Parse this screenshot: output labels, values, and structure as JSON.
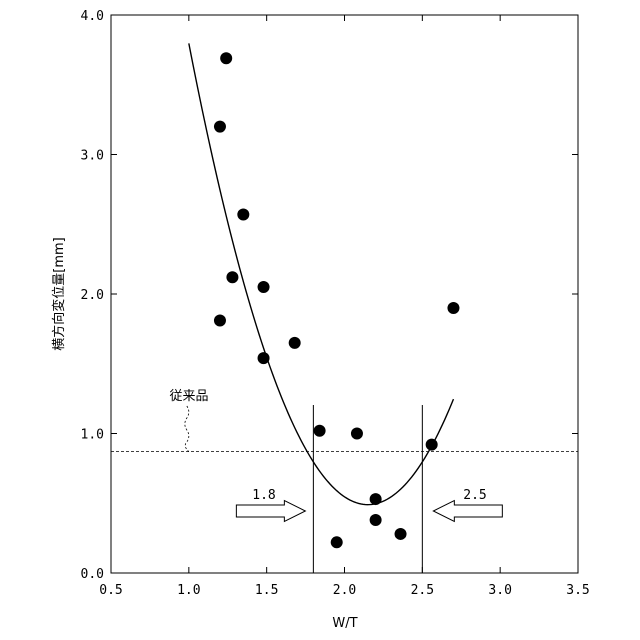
{
  "chart_data": {
    "type": "scatter",
    "xlabel": "W/T",
    "ylabel": "横方向変位量[mm]",
    "xlim": [
      0.5,
      3.5
    ],
    "ylim": [
      0.0,
      4.0
    ],
    "x_ticks": [
      "0.5",
      "1.0",
      "1.5",
      "2.0",
      "2.5",
      "3.0",
      "3.5"
    ],
    "y_ticks": [
      "0.0",
      "1.0",
      "2.0",
      "3.0",
      "4.0"
    ],
    "grid": false,
    "points": [
      {
        "x": 1.24,
        "y": 3.69
      },
      {
        "x": 1.2,
        "y": 3.2
      },
      {
        "x": 1.35,
        "y": 2.57
      },
      {
        "x": 1.28,
        "y": 2.12
      },
      {
        "x": 1.48,
        "y": 2.05
      },
      {
        "x": 1.2,
        "y": 1.81
      },
      {
        "x": 1.48,
        "y": 1.54
      },
      {
        "x": 1.68,
        "y": 1.65
      },
      {
        "x": 1.84,
        "y": 1.02
      },
      {
        "x": 2.08,
        "y": 1.0
      },
      {
        "x": 2.2,
        "y": 0.53
      },
      {
        "x": 2.2,
        "y": 0.38
      },
      {
        "x": 1.95,
        "y": 0.22
      },
      {
        "x": 2.36,
        "y": 0.28
      },
      {
        "x": 2.56,
        "y": 0.92
      },
      {
        "x": 2.7,
        "y": 1.9
      }
    ],
    "fit_curve": {
      "type": "quadratic",
      "vertex_x": 2.15,
      "vertex_y": 0.49,
      "coefficient": 2.5,
      "x_range": [
        1.0,
        2.7
      ]
    },
    "reference_line": {
      "y": 0.87,
      "style": "dashed",
      "label": "従来品"
    },
    "vertical_lines": [
      1.8,
      2.5
    ],
    "arrows": [
      {
        "label": "1.8",
        "points_to": 1.8,
        "direction": "right"
      },
      {
        "label": "2.5",
        "points_to": 2.5,
        "direction": "left"
      }
    ]
  }
}
